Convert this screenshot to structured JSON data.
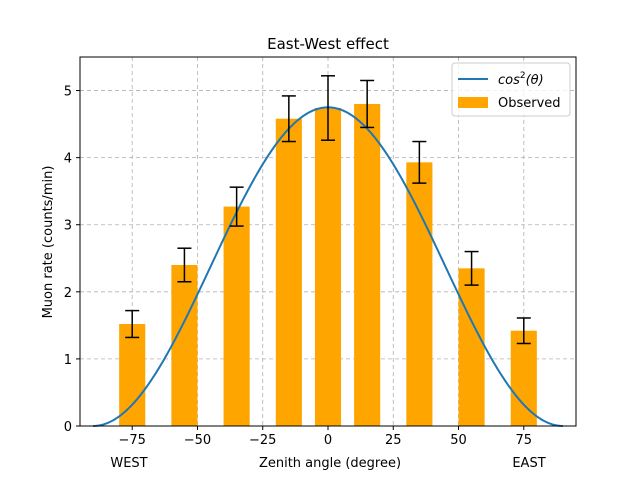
{
  "chart_data": {
    "type": "bar",
    "title": "East-West effect",
    "xlabel": "Zenith angle (degree)",
    "ylabel": "Muon rate (counts/min)",
    "xlim": [
      -95,
      95
    ],
    "ylim": [
      0,
      5.5
    ],
    "xticks": [
      -75,
      -50,
      -25,
      0,
      25,
      50,
      75
    ],
    "xtick_labels": [
      "−75",
      "−50",
      "−25",
      "0",
      "25",
      "50",
      "75"
    ],
    "yticks": [
      0,
      1,
      2,
      3,
      4,
      5
    ],
    "ytick_labels": [
      "0",
      "1",
      "2",
      "3",
      "4",
      "5"
    ],
    "grid": true,
    "legend_position": "top-right",
    "bar_width_deg": 10,
    "side_labels": {
      "left": "WEST",
      "right": "EAST"
    },
    "series": [
      {
        "name": "Observed",
        "kind": "bar",
        "color": "#ffa500",
        "x": [
          -75,
          -55,
          -35,
          -15,
          0,
          15,
          35,
          55,
          75
        ],
        "values": [
          1.52,
          2.4,
          3.27,
          4.58,
          4.74,
          4.8,
          3.93,
          2.35,
          1.42
        ],
        "errors": [
          0.2,
          0.25,
          0.29,
          0.34,
          0.48,
          0.35,
          0.31,
          0.25,
          0.19
        ]
      },
      {
        "name": "cos²(θ)",
        "legend_label": {
          "base": "cos",
          "sup": "2",
          "rest": "(θ)"
        },
        "kind": "line",
        "color": "#1f77b4",
        "function": "A*cos^2(theta)",
        "amplitude": 4.75,
        "x_range": [
          -90,
          90
        ]
      }
    ]
  }
}
